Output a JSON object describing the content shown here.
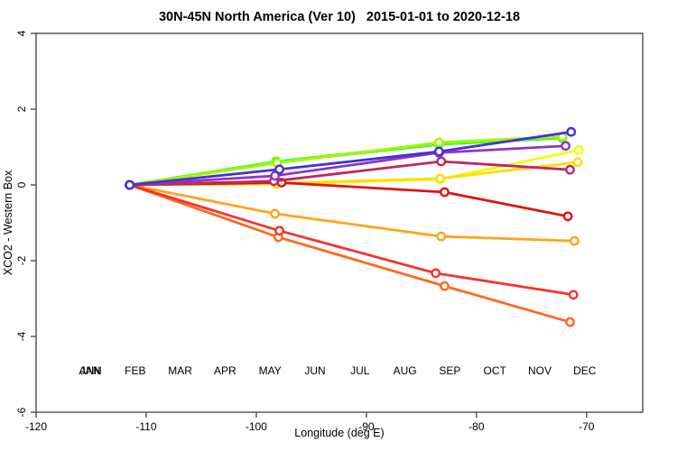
{
  "chart_data": {
    "type": "line",
    "title": "30N-45N North America (Ver 10)   2015-01-01 to 2020-12-18",
    "xlabel": "Longitude (deg E)",
    "ylabel": "XCO2 - Western Box",
    "xlim": [
      -120,
      -64.9
    ],
    "ylim": [
      -6,
      4
    ],
    "xticks": [
      -120,
      -110,
      -100,
      -90,
      -80,
      -70
    ],
    "yticks": [
      4,
      2,
      0,
      -2,
      -4,
      -6
    ],
    "grid": false,
    "marker": "open-circle",
    "legend_position": "bottom-inside",
    "frame_color": "#4d4d4d",
    "series": [
      {
        "name": "ANN",
        "color": "#1FD428",
        "legend_slot": 0,
        "x": [
          -111.5,
          -98.2,
          -83.4,
          -72.2
        ],
        "values": [
          0,
          0.6,
          1.07,
          1.24
        ]
      },
      {
        "name": "JAN",
        "color": "#46F50A",
        "legend_slot": 0,
        "x": [
          -111.5,
          -98.2,
          -83.4,
          -72.2
        ],
        "values": [
          0,
          0.62,
          1.09,
          1.26
        ]
      },
      {
        "name": "FEB",
        "color": "#52FF29",
        "legend_slot": 1,
        "x": [
          -111.5,
          -98.2,
          -83.4,
          -72.2
        ],
        "values": [
          0,
          0.61,
          1.08,
          1.25
        ]
      },
      {
        "name": "MAR",
        "color": "#A6F500",
        "legend_slot": 2,
        "x": [
          -111.5,
          -98.1,
          -83.4,
          -72.2
        ],
        "values": [
          0,
          0.58,
          1.12,
          1.28
        ]
      },
      {
        "name": "APR",
        "color": "#EDFF00",
        "legend_slot": 3,
        "x": [
          -111.5,
          -98.2,
          -83.3,
          -70.7
        ],
        "values": [
          0,
          0.02,
          0.15,
          0.92
        ]
      },
      {
        "name": "MAY",
        "color": "#FFDC00",
        "legend_slot": 4,
        "x": [
          -111.5,
          -98.2,
          -83.3,
          -70.8
        ],
        "values": [
          0,
          0.04,
          0.17,
          0.6
        ]
      },
      {
        "name": "JUN",
        "color": "#FFA41C",
        "legend_slot": 5,
        "x": [
          -111.5,
          -98.3,
          -83.2,
          -71.1
        ],
        "values": [
          0,
          -0.76,
          -1.36,
          -1.48
        ]
      },
      {
        "name": "JUL",
        "color": "#FF681E",
        "legend_slot": 6,
        "x": [
          -111.5,
          -98.0,
          -82.9,
          -71.5
        ],
        "values": [
          0,
          -1.38,
          -2.67,
          -3.62
        ]
      },
      {
        "name": "AUG",
        "color": "#F53333",
        "legend_slot": 7,
        "x": [
          -111.5,
          -97.9,
          -83.7,
          -71.2
        ],
        "values": [
          0,
          -1.21,
          -2.33,
          -2.9
        ]
      },
      {
        "name": "SEP",
        "color": "#E01414",
        "legend_slot": 8,
        "x": [
          -111.5,
          -97.7,
          -82.9,
          -71.7
        ],
        "values": [
          0,
          0.06,
          -0.19,
          -0.83
        ]
      },
      {
        "name": "OCT",
        "color": "#BE2862",
        "legend_slot": 9,
        "x": [
          -111.5,
          -98.4,
          -83.2,
          -71.5
        ],
        "values": [
          0,
          0.1,
          0.62,
          0.4
        ]
      },
      {
        "name": "NOV",
        "color": "#9232C8",
        "legend_slot": 10,
        "x": [
          -111.5,
          -98.3,
          -83.4,
          -71.9
        ],
        "values": [
          0,
          0.24,
          0.85,
          1.03
        ]
      },
      {
        "name": "DEC",
        "color": "#4433D4",
        "legend_slot": 11,
        "x": [
          -111.5,
          -97.9,
          -83.4,
          -71.4
        ],
        "values": [
          0,
          0.41,
          0.88,
          1.4
        ]
      }
    ]
  }
}
